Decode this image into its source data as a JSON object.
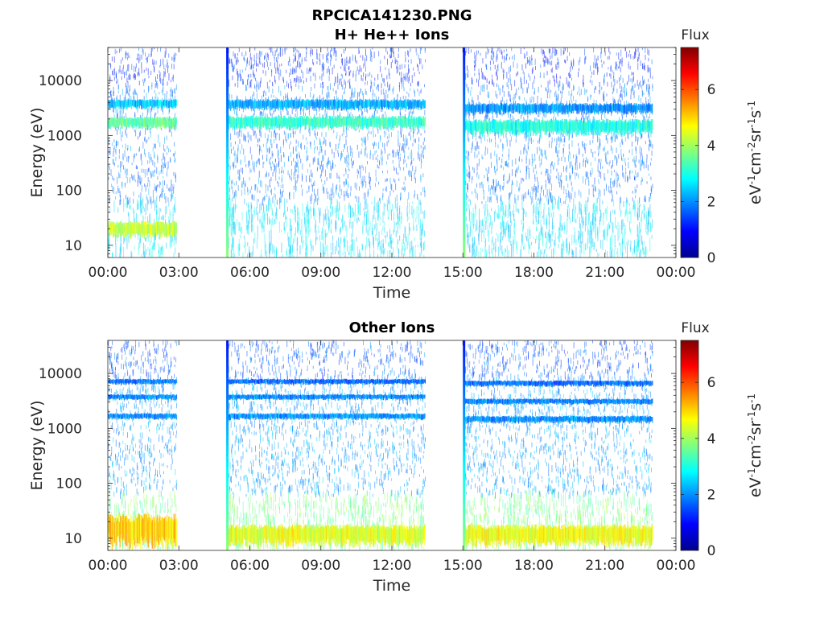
{
  "figure": {
    "title_line1": "RPCICA141230.PNG"
  },
  "colormap": {
    "name": "jet",
    "stops": [
      "#00008f",
      "#0000ff",
      "#00ffff",
      "#ffff00",
      "#ff0000",
      "#800000"
    ]
  },
  "chart_data": [
    {
      "type": "heatmap",
      "title": "H+ He++ Ions",
      "xlabel": "Time",
      "ylabel": "Energy (eV)",
      "x_ticks": [
        "00:00",
        "03:00",
        "06:00",
        "09:00",
        "12:00",
        "15:00",
        "18:00",
        "21:00",
        "00:00"
      ],
      "y_ticks": [
        "10",
        "100",
        "1000",
        "10000"
      ],
      "y_scale": "log",
      "ylim": [
        6,
        40000
      ],
      "xlim_hours": [
        0,
        24
      ],
      "data_gaps_hours": [
        [
          2.9,
          5.0
        ],
        [
          13.4,
          15.0
        ],
        [
          23.0,
          24.0
        ]
      ],
      "spikes_hours": [
        5.05,
        15.05
      ],
      "bands": [
        {
          "x_hours": [
            0,
            2.9
          ],
          "energy_eV": [
            1400,
            2200
          ],
          "flux": 3.5
        },
        {
          "x_hours": [
            0,
            2.9
          ],
          "energy_eV": [
            3200,
            4600
          ],
          "flux": 2.4
        },
        {
          "x_hours": [
            0,
            2.9
          ],
          "energy_eV": [
            15,
            28
          ],
          "flux": 4.3
        },
        {
          "x_hours": [
            5.05,
            13.4
          ],
          "energy_eV": [
            1400,
            2300
          ],
          "flux": 3.2
        },
        {
          "x_hours": [
            5.05,
            13.4
          ],
          "energy_eV": [
            3100,
            4600
          ],
          "flux": 2.2
        },
        {
          "x_hours": [
            15.05,
            23.0
          ],
          "energy_eV": [
            1100,
            2000
          ],
          "flux": 3.0
        },
        {
          "x_hours": [
            15.05,
            23.0
          ],
          "energy_eV": [
            2600,
            3900
          ],
          "flux": 2.0
        }
      ],
      "colorbar": {
        "label_top": "Flux",
        "label": "eV-1cm-2sr-1s-1",
        "ticks": [
          "0",
          "2",
          "4",
          "6"
        ],
        "range": [
          0,
          7.5
        ]
      }
    },
    {
      "type": "heatmap",
      "title": "Other Ions",
      "xlabel": "Time",
      "ylabel": "Energy (eV)",
      "x_ticks": [
        "00:00",
        "03:00",
        "06:00",
        "09:00",
        "12:00",
        "15:00",
        "18:00",
        "21:00",
        "00:00"
      ],
      "y_ticks": [
        "10",
        "100",
        "1000",
        "10000"
      ],
      "y_scale": "log",
      "ylim": [
        6,
        40000
      ],
      "xlim_hours": [
        0,
        24
      ],
      "data_gaps_hours": [
        [
          2.9,
          5.0
        ],
        [
          13.4,
          15.0
        ],
        [
          23.0,
          24.0
        ]
      ],
      "spikes_hours": [
        5.05,
        15.05
      ],
      "bands": [
        {
          "x_hours": [
            0,
            2.9
          ],
          "energy_eV": [
            1500,
            1900
          ],
          "flux": 2.0
        },
        {
          "x_hours": [
            0,
            2.9
          ],
          "energy_eV": [
            3400,
            4200
          ],
          "flux": 1.9
        },
        {
          "x_hours": [
            0,
            2.9
          ],
          "energy_eV": [
            6500,
            8000
          ],
          "flux": 1.8
        },
        {
          "x_hours": [
            0,
            2.9
          ],
          "energy_eV": [
            8,
            28
          ],
          "flux": 5.0
        },
        {
          "x_hours": [
            5.05,
            13.4
          ],
          "energy_eV": [
            1500,
            1900
          ],
          "flux": 2.0
        },
        {
          "x_hours": [
            5.05,
            13.4
          ],
          "energy_eV": [
            3400,
            4200
          ],
          "flux": 1.9
        },
        {
          "x_hours": [
            5.05,
            13.4
          ],
          "energy_eV": [
            6500,
            8000
          ],
          "flux": 1.7
        },
        {
          "x_hours": [
            5.05,
            13.4
          ],
          "energy_eV": [
            8,
            18
          ],
          "flux": 4.5
        },
        {
          "x_hours": [
            15.05,
            23.0
          ],
          "energy_eV": [
            1300,
            1700
          ],
          "flux": 2.0
        },
        {
          "x_hours": [
            15.05,
            23.0
          ],
          "energy_eV": [
            2800,
            3500
          ],
          "flux": 1.9
        },
        {
          "x_hours": [
            15.05,
            23.0
          ],
          "energy_eV": [
            6000,
            7500
          ],
          "flux": 1.7
        },
        {
          "x_hours": [
            15.05,
            23.0
          ],
          "energy_eV": [
            8,
            18
          ],
          "flux": 4.6
        }
      ],
      "colorbar": {
        "label_top": "Flux",
        "label": "eV-1cm-2sr-1s-1",
        "ticks": [
          "0",
          "2",
          "4",
          "6"
        ],
        "range": [
          0,
          7.5
        ]
      }
    }
  ]
}
